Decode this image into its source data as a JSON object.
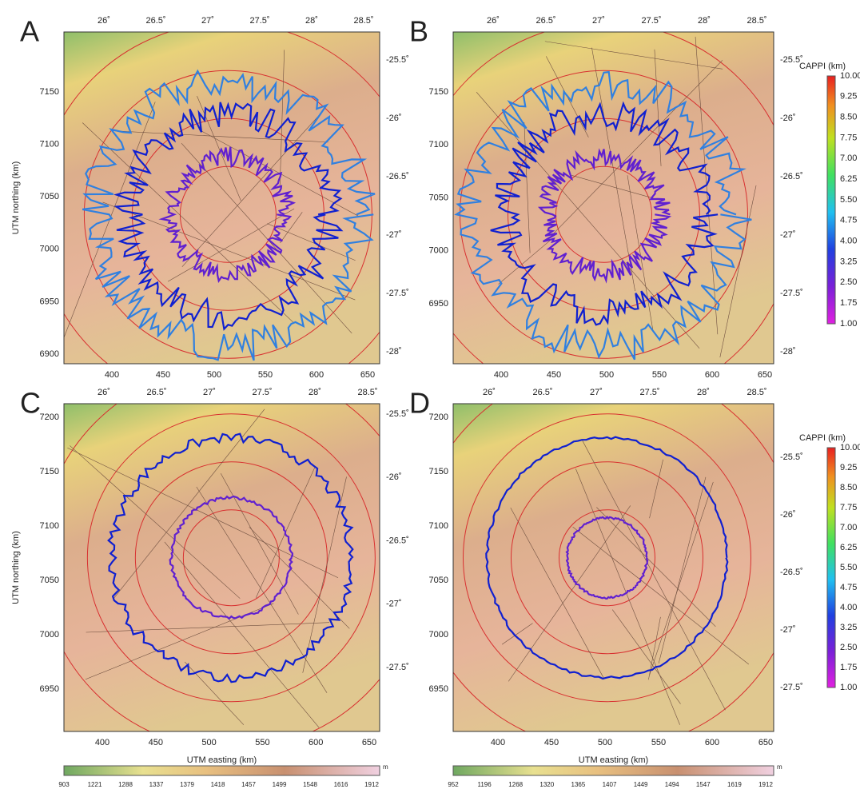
{
  "panels": [
    {
      "label": "A",
      "top_ticks": [
        "26˚",
        "26.5˚",
        "27˚",
        "27.5˚",
        "28˚",
        "28.5˚"
      ],
      "right_ticks": [
        "-25.5˚",
        "-26˚",
        "-26.5˚",
        "-27˚",
        "-27.5˚",
        "-28˚"
      ],
      "left_ticks": [
        "7150",
        "7100",
        "7050",
        "7000",
        "6950",
        "6900"
      ],
      "bottom_ticks": [
        "400",
        "450",
        "500",
        "550",
        "600",
        "650"
      ],
      "y_label": "UTM northing (km)"
    },
    {
      "label": "B",
      "top_ticks": [
        "26˚",
        "26.5˚",
        "27˚",
        "27.5˚",
        "28˚",
        "28.5˚"
      ],
      "right_ticks": [
        "-25.5˚",
        "-26˚",
        "-26.5˚",
        "-27˚",
        "-27.5˚",
        "-28˚"
      ],
      "left_ticks": [
        "7150",
        "7100",
        "7050",
        "7000",
        "6950"
      ],
      "bottom_ticks": [
        "400",
        "450",
        "500",
        "550",
        "600",
        "650"
      ]
    },
    {
      "label": "C",
      "top_ticks": [
        "26˚",
        "26.5˚",
        "27˚",
        "27.5˚",
        "28˚",
        "28.5˚"
      ],
      "right_ticks": [
        "-25.5˚",
        "-26˚",
        "-26.5˚",
        "-27˚",
        "-27.5˚"
      ],
      "left_ticks": [
        "7200",
        "7150",
        "7100",
        "7050",
        "7000",
        "6950"
      ],
      "bottom_ticks": [
        "400",
        "450",
        "500",
        "550",
        "600",
        "650"
      ],
      "y_label": "UTM northing (km)",
      "x_label": "UTM easting (km)"
    },
    {
      "label": "D",
      "top_ticks": [
        "26˚",
        "26.5˚",
        "27˚",
        "27.5˚",
        "28˚",
        "28.5˚"
      ],
      "right_ticks": [
        "-25.5˚",
        "-26˚",
        "-26.5˚",
        "-27˚",
        "-27.5˚"
      ],
      "left_ticks": [
        "7200",
        "7150",
        "7100",
        "7050",
        "7000",
        "6950"
      ],
      "bottom_ticks": [
        "400",
        "450",
        "500",
        "550",
        "600",
        "650"
      ],
      "x_label": "UTM easting (km)"
    }
  ],
  "cappi_colorbars": [
    {
      "title": "CAPPI (km)",
      "labels": [
        "10.00",
        "9.25",
        "8.50",
        "7.75",
        "7.00",
        "6.25",
        "5.50",
        "4.75",
        "4.00",
        "3.25",
        "2.50",
        "1.75",
        "1.00"
      ]
    },
    {
      "title": "CAPPI (km)",
      "labels": [
        "10.00",
        "9.25",
        "8.50",
        "7.75",
        "7.00",
        "6.25",
        "5.50",
        "4.75",
        "4.00",
        "3.25",
        "2.50",
        "1.75",
        "1.00"
      ]
    }
  ],
  "elevation_colorbars": [
    {
      "labels": [
        "903",
        "1221",
        "1288",
        "1337",
        "1379",
        "1418",
        "1457",
        "1499",
        "1548",
        "1616",
        "1912"
      ],
      "unit": "m"
    },
    {
      "labels": [
        "952",
        "1196",
        "1268",
        "1320",
        "1365",
        "1407",
        "1449",
        "1494",
        "1547",
        "1619",
        "1912"
      ],
      "unit": "m"
    }
  ]
}
